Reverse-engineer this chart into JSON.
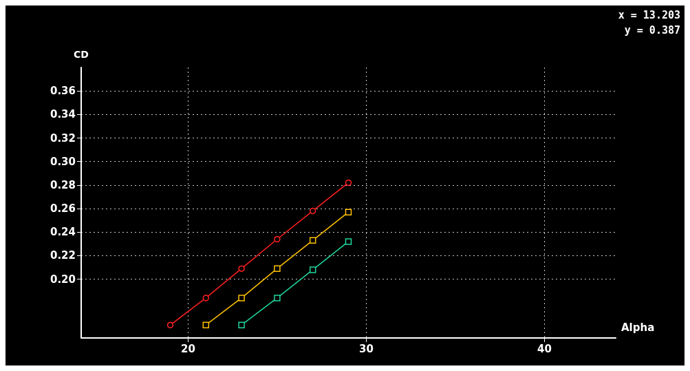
{
  "chart_data": {
    "type": "line",
    "xlabel": "Alpha",
    "ylabel": "CD",
    "annotations": [
      "x = 13.203",
      "y = 0.387"
    ],
    "xlim": [
      14,
      44
    ],
    "xticks": [
      20,
      30,
      40
    ],
    "ylim": [
      0.15,
      0.38
    ],
    "yticks": [
      {
        "value": 0.2,
        "label": "0.20"
      },
      0.22,
      0.24,
      0.26,
      0.28,
      {
        "value": 0.3,
        "label": "0.30"
      },
      0.32,
      0.34,
      0.36
    ],
    "grid": true,
    "line_style": "solid",
    "series": [
      {
        "color": "#ff2020",
        "marker": "circle",
        "x": [
          19,
          21,
          23,
          25,
          27,
          29
        ],
        "values": [
          0.161,
          0.184,
          0.209,
          0.234,
          0.258,
          0.282
        ]
      },
      {
        "color": "#ffc000",
        "marker": "square",
        "x": [
          21,
          23,
          25,
          27,
          29
        ],
        "values": [
          0.161,
          0.184,
          0.209,
          0.233,
          0.257
        ]
      },
      {
        "color": "#20d8a0",
        "marker": "square",
        "x": [
          23,
          25,
          27,
          29
        ],
        "values": [
          0.161,
          0.184,
          0.208,
          0.232
        ]
      }
    ]
  }
}
